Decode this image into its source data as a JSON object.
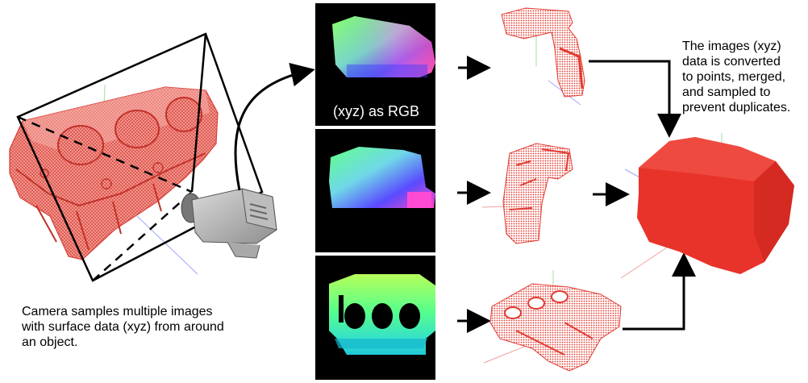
{
  "captions": {
    "camera": "Camera samples multiple images\nwith surface data (xyz) from around\nan object.",
    "merge": "The images (xyz)\ndata is converted\nto points, merged,\nand sampled to\nprevent duplicates."
  },
  "panels": {
    "top_label": "(xyz) as RGB"
  },
  "colors": {
    "point_cloud": "#e8332a",
    "point_cloud_light": "#f08a84",
    "panel_bg": "#000000",
    "arrow": "#000000"
  }
}
